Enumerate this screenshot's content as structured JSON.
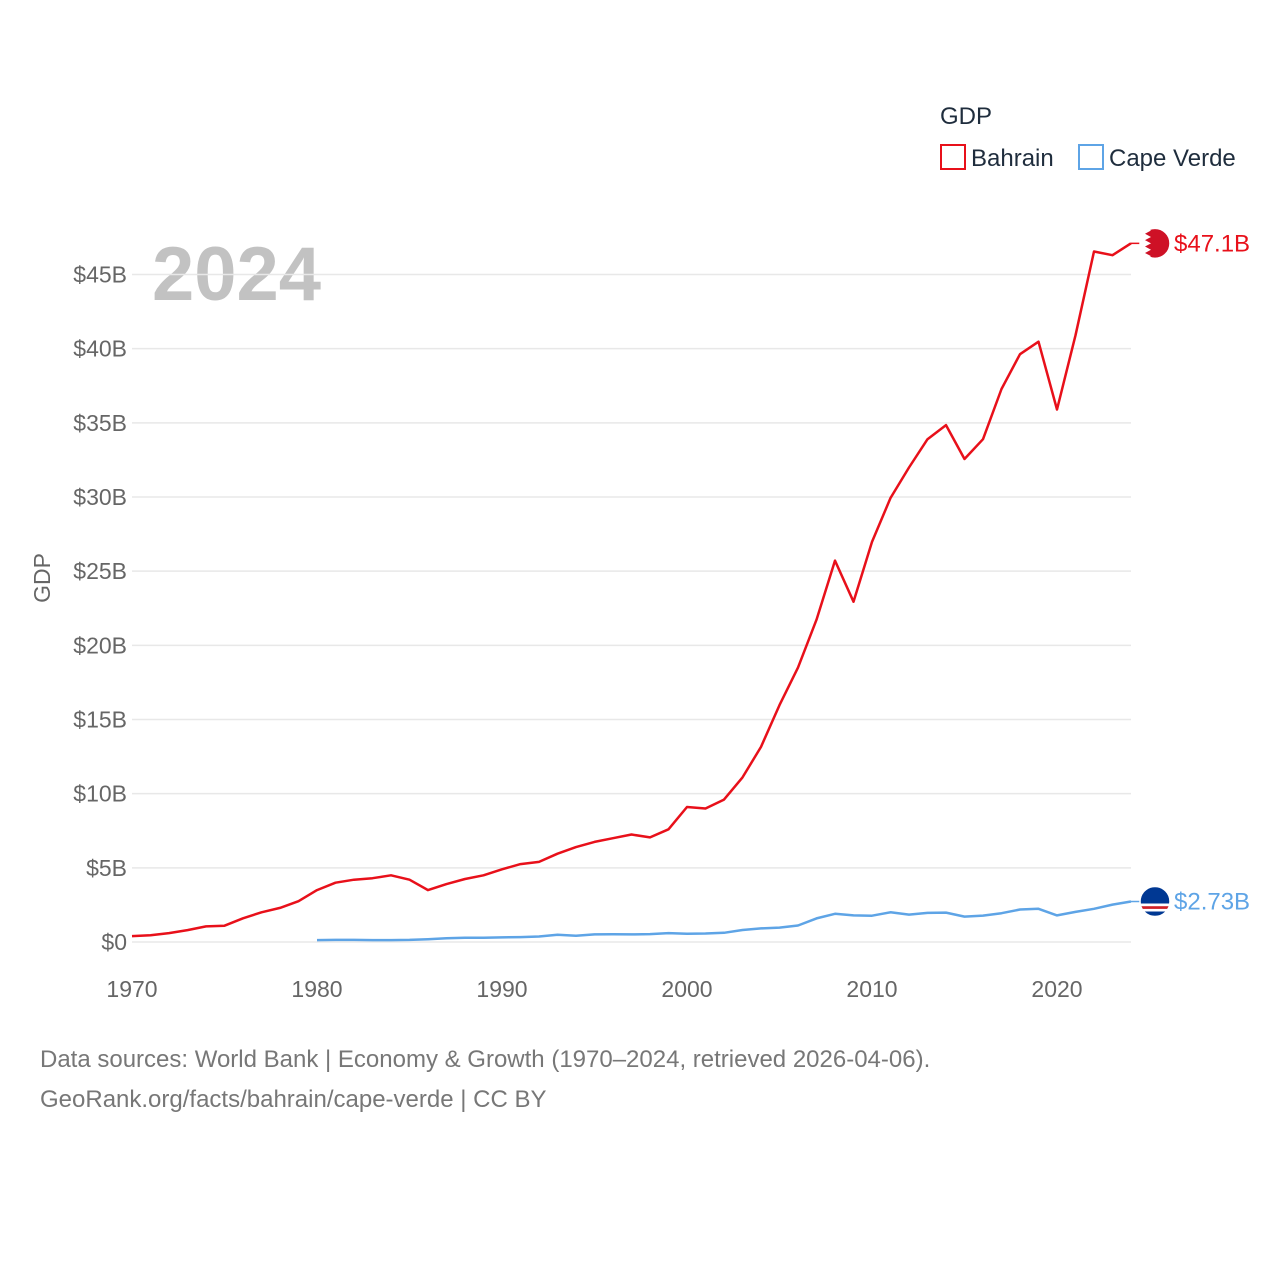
{
  "year_watermark": "2024",
  "legend": {
    "title": "GDP",
    "items": [
      {
        "name": "Bahrain",
        "color": "#e8101a"
      },
      {
        "name": "Cape Verde",
        "color": "#5ea4e6"
      }
    ]
  },
  "footer": {
    "line1": "Data sources: World Bank | Economy & Growth (1970–2024, retrieved 2026-04-06).",
    "line2": "GeoRank.org/facts/bahrain/cape-verde | CC BY"
  },
  "chart_data": {
    "type": "line",
    "title": "",
    "xlabel": "",
    "ylabel": "GDP",
    "xlim": [
      1970,
      2024
    ],
    "ylim": [
      0,
      48
    ],
    "x_ticks": [
      1970,
      1980,
      1990,
      2000,
      2010,
      2020
    ],
    "y_ticks": [
      {
        "value": 0,
        "label": "$0"
      },
      {
        "value": 5,
        "label": "$5B"
      },
      {
        "value": 10,
        "label": "$10B"
      },
      {
        "value": 15,
        "label": "$15B"
      },
      {
        "value": 20,
        "label": "$20B"
      },
      {
        "value": 25,
        "label": "$25B"
      },
      {
        "value": 30,
        "label": "$30B"
      },
      {
        "value": 35,
        "label": "$35B"
      },
      {
        "value": 40,
        "label": "$40B"
      },
      {
        "value": 45,
        "label": "$45B"
      }
    ],
    "grid": true,
    "units": "billions USD",
    "series": [
      {
        "name": "Bahrain",
        "color": "#e8101a",
        "end_label": "$47.1B",
        "x": [
          1970,
          1971,
          1972,
          1973,
          1974,
          1975,
          1976,
          1977,
          1978,
          1979,
          1980,
          1981,
          1982,
          1983,
          1984,
          1985,
          1986,
          1987,
          1988,
          1989,
          1990,
          1991,
          1992,
          1993,
          1994,
          1995,
          1996,
          1997,
          1998,
          1999,
          2000,
          2001,
          2002,
          2003,
          2004,
          2005,
          2006,
          2007,
          2008,
          2009,
          2010,
          2011,
          2012,
          2013,
          2014,
          2015,
          2016,
          2017,
          2018,
          2019,
          2020,
          2021,
          2022,
          2023,
          2024
        ],
        "values": [
          0.4,
          0.45,
          0.6,
          0.8,
          1.05,
          1.1,
          1.6,
          2.0,
          2.3,
          2.75,
          3.5,
          4.0,
          4.2,
          4.3,
          4.5,
          4.2,
          3.5,
          3.9,
          4.25,
          4.5,
          4.9,
          5.25,
          5.4,
          5.95,
          6.4,
          6.75,
          7.0,
          7.25,
          7.05,
          7.6,
          9.1,
          9.0,
          9.6,
          11.1,
          13.15,
          15.97,
          18.5,
          21.73,
          25.71,
          22.94,
          26.97,
          29.93,
          31.99,
          33.9,
          34.85,
          32.56,
          33.9,
          37.28,
          39.63,
          40.47,
          35.9,
          40.9,
          46.55,
          46.3,
          47.1
        ]
      },
      {
        "name": "Cape Verde",
        "color": "#5ea4e6",
        "end_label": "$2.73B",
        "x": [
          1980,
          1981,
          1982,
          1983,
          1984,
          1985,
          1986,
          1987,
          1988,
          1989,
          1990,
          1991,
          1992,
          1993,
          1994,
          1995,
          1996,
          1997,
          1998,
          1999,
          2000,
          2001,
          2002,
          2003,
          2004,
          2005,
          2006,
          2007,
          2008,
          2009,
          2010,
          2011,
          2012,
          2013,
          2014,
          2015,
          2016,
          2017,
          2018,
          2019,
          2020,
          2021,
          2022,
          2023,
          2024
        ],
        "values": [
          0.13,
          0.14,
          0.14,
          0.13,
          0.13,
          0.14,
          0.19,
          0.25,
          0.28,
          0.28,
          0.31,
          0.33,
          0.37,
          0.49,
          0.42,
          0.51,
          0.52,
          0.51,
          0.53,
          0.6,
          0.56,
          0.57,
          0.62,
          0.81,
          0.92,
          0.97,
          1.11,
          1.59,
          1.9,
          1.79,
          1.77,
          2.0,
          1.85,
          1.96,
          1.98,
          1.71,
          1.78,
          1.94,
          2.19,
          2.24,
          1.79,
          2.03,
          2.24,
          2.52,
          2.73
        ]
      }
    ]
  }
}
